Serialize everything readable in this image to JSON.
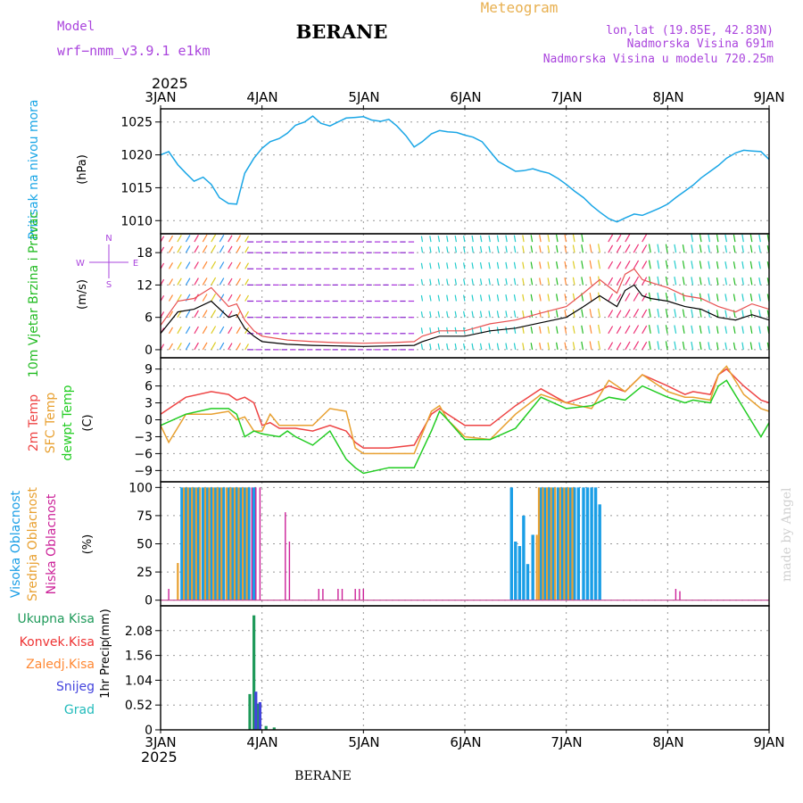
{
  "header": {
    "model_label": "Model",
    "model_name": "wrf−nmm_v3.9.1  e1km",
    "station": "BERANE",
    "meteogram": "Meteogram",
    "coords": "lon,lat (19.85E, 42.83N)",
    "elevation": "Nadmorska Visina 691m",
    "model_elevation": "Nadmorska Visina u modelu 720.25m",
    "year_top": "2025",
    "year_bottom": "2025",
    "footer_station": "BERANE",
    "credit": "made by Angel"
  },
  "colors": {
    "pressure": "#1aa6e6",
    "wind_title": "#22bb22",
    "wind_dir": "#aa44dd",
    "temp2m": "#ee4444",
    "sfc": "#e8a030",
    "dew": "#22cc22",
    "high_cloud": "#1a9ee6",
    "mid_cloud": "#e8a030",
    "low_cloud": "#cc2299",
    "total_precip": "#1f9a5a",
    "conv": "#ee3333",
    "frozen": "#ff8833",
    "snow": "#4444dd",
    "hail": "#22bbbb",
    "violet_header": "#aa44dd",
    "gold_header": "#e8b050"
  },
  "chart_data": [
    {
      "type": "line",
      "panel": "pressure",
      "title": "",
      "ylabel": "Pritisak na nivou mora",
      "unit": "(hPa)",
      "ylim": [
        1008,
        1027
      ],
      "yticks": [
        1010,
        1015,
        1020,
        1025
      ],
      "xlim": [
        0,
        6
      ],
      "xticks": [
        "3JAN",
        "4JAN",
        "5JAN",
        "6JAN",
        "7JAN",
        "8JAN",
        "9JAN"
      ],
      "grid": true,
      "series": [
        {
          "x": [
            0,
            0.08,
            0.17,
            0.25,
            0.33,
            0.42,
            0.5,
            0.58,
            0.67,
            0.75,
            0.83,
            0.92,
            1.0,
            1.08,
            1.17,
            1.25,
            1.33,
            1.42,
            1.5,
            1.58,
            1.67,
            1.75,
            1.83,
            1.92,
            2.0,
            2.08,
            2.17,
            2.25,
            2.33,
            2.42,
            2.5,
            2.58,
            2.67,
            2.75,
            2.83,
            2.92,
            3.0,
            3.08,
            3.17,
            3.25,
            3.33,
            3.42,
            3.5,
            3.58,
            3.67,
            3.75,
            3.83,
            3.92,
            4.0,
            4.08,
            4.17,
            4.25,
            4.33,
            4.42,
            4.5,
            4.58,
            4.67,
            4.75,
            4.83,
            4.92,
            5.0,
            5.08,
            5.17,
            5.25,
            5.33,
            5.42,
            5.5,
            5.58,
            5.67,
            5.75,
            5.83,
            5.92,
            6.0
          ],
          "values": [
            1020.0,
            1020.5,
            1018.5,
            1017.2,
            1016.0,
            1016.6,
            1015.5,
            1013.5,
            1012.6,
            1012.5,
            1017.2,
            1019.5,
            1021.0,
            1022.0,
            1022.5,
            1023.3,
            1024.5,
            1025.0,
            1025.9,
            1024.8,
            1024.4,
            1025.0,
            1025.6,
            1025.7,
            1025.8,
            1025.3,
            1025.1,
            1025.4,
            1024.4,
            1022.9,
            1021.2,
            1022.0,
            1023.2,
            1023.7,
            1023.5,
            1023.4,
            1023.0,
            1022.7,
            1022.0,
            1020.5,
            1019.0,
            1018.2,
            1017.5,
            1017.6,
            1017.9,
            1017.5,
            1017.2,
            1016.4,
            1015.5,
            1014.5,
            1013.5,
            1012.3,
            1011.3,
            1010.3,
            1009.8,
            1010.4,
            1011.0,
            1010.8,
            1011.3,
            1011.9,
            1012.5,
            1013.5,
            1014.5,
            1015.4,
            1016.5,
            1017.5,
            1018.4,
            1019.5,
            1020.3,
            1020.7,
            1020.6,
            1020.5,
            1019.3
          ]
        }
      ]
    },
    {
      "type": "line",
      "panel": "wind",
      "ylabel": "10m Vjetar Brzina i Pravac",
      "unit": "(m/s)",
      "ylim": [
        -1.5,
        21.5
      ],
      "yticks": [
        0,
        6,
        12,
        18
      ],
      "compass": {
        "n": "N",
        "s": "S",
        "e": "E",
        "w": "W"
      },
      "grid": true,
      "series": [
        {
          "x": [
            0,
            0.17,
            0.33,
            0.5,
            0.67,
            0.75,
            0.83,
            0.92,
            1.0,
            1.25,
            1.5,
            1.75,
            2.0,
            2.25,
            2.5,
            2.58,
            2.75,
            3.0,
            3.25,
            3.5,
            3.75,
            4.0,
            4.17,
            4.33,
            4.5,
            4.58,
            4.67,
            4.75,
            4.83,
            5.0,
            5.17,
            5.33,
            5.5,
            5.67,
            5.83,
            6.0
          ],
          "values": [
            3,
            7,
            7.5,
            9,
            6,
            6.5,
            4,
            2.5,
            1.5,
            1,
            0.8,
            0.7,
            0.6,
            0.7,
            0.8,
            1.5,
            2.5,
            2.5,
            3.5,
            4,
            5,
            6,
            8,
            10,
            8,
            11,
            12,
            10,
            9.5,
            9,
            8,
            7.5,
            6,
            5.5,
            6.5,
            5.5
          ]
        },
        {
          "x": [
            0,
            0.17,
            0.33,
            0.5,
            0.67,
            0.75,
            0.83,
            0.92,
            1.0,
            1.25,
            1.5,
            1.75,
            2.0,
            2.25,
            2.5,
            2.58,
            2.75,
            3.0,
            3.25,
            3.5,
            3.75,
            4.0,
            4.17,
            4.33,
            4.5,
            4.58,
            4.67,
            4.75,
            4.83,
            5.0,
            5.17,
            5.33,
            5.5,
            5.67,
            5.83,
            6.0
          ],
          "values": [
            4.5,
            9,
            9.5,
            11.5,
            8,
            8.5,
            5.5,
            3.5,
            2.5,
            1.8,
            1.5,
            1.3,
            1.2,
            1.3,
            1.5,
            2.5,
            3.5,
            3.5,
            4.8,
            5.5,
            6.8,
            8,
            10.5,
            13,
            10.5,
            14,
            15,
            13,
            12.5,
            11.5,
            10,
            9.5,
            8,
            7,
            8.5,
            7.5
          ]
        }
      ]
    },
    {
      "type": "line",
      "panel": "temperature",
      "ylabel": "2m Temp / SFC Temp / dewpt Temp",
      "unit": "(C)",
      "ylim": [
        -11,
        11
      ],
      "yticks": [
        -9,
        -6,
        -3,
        0,
        3,
        6,
        9
      ],
      "grid": true,
      "series": [
        {
          "name": "2m Temp",
          "x": [
            0,
            0.25,
            0.5,
            0.67,
            0.75,
            0.83,
            0.92,
            1.0,
            1.08,
            1.17,
            1.25,
            1.33,
            1.5,
            1.67,
            1.83,
            1.92,
            2.0,
            2.25,
            2.5,
            2.67,
            2.75,
            2.83,
            3.0,
            3.25,
            3.5,
            3.75,
            4.0,
            4.25,
            4.42,
            4.58,
            4.75,
            5.0,
            5.17,
            5.25,
            5.42,
            5.5,
            5.58,
            5.75,
            5.92,
            6.0
          ],
          "values": [
            1,
            4,
            5,
            4.5,
            3.5,
            4,
            3,
            -1,
            -0.5,
            -1.5,
            -1.5,
            -1.5,
            -2,
            -1,
            -2,
            -4,
            -5,
            -5,
            -4.5,
            1,
            2,
            1,
            -1,
            -1,
            2.5,
            5.5,
            3,
            4.5,
            6,
            5,
            8,
            6,
            4.5,
            5,
            4.5,
            8,
            9,
            6,
            3.5,
            3
          ]
        },
        {
          "name": "SFC Temp",
          "x": [
            0,
            0.08,
            0.25,
            0.5,
            0.67,
            0.75,
            0.83,
            0.92,
            1.0,
            1.08,
            1.17,
            1.25,
            1.5,
            1.67,
            1.83,
            1.92,
            2.0,
            2.25,
            2.5,
            2.67,
            2.75,
            2.83,
            3.0,
            3.25,
            3.5,
            3.75,
            4.0,
            4.25,
            4.42,
            4.58,
            4.75,
            5.0,
            5.17,
            5.25,
            5.42,
            5.5,
            5.58,
            5.75,
            5.92,
            6.0
          ],
          "values": [
            -1,
            -4,
            1,
            1,
            1.5,
            0,
            0.5,
            -2,
            -2,
            1,
            -1,
            -1,
            -1,
            2,
            1.5,
            -5,
            -6,
            -6,
            -6,
            1.5,
            2.5,
            0,
            -3,
            -3.5,
            1,
            4.5,
            3,
            2,
            7,
            5,
            8,
            5,
            4,
            4,
            3.5,
            8,
            9.5,
            4.5,
            2,
            1.5
          ]
        },
        {
          "name": "dewpt Temp",
          "x": [
            0,
            0.25,
            0.5,
            0.67,
            0.75,
            0.83,
            0.92,
            1.0,
            1.17,
            1.25,
            1.33,
            1.5,
            1.67,
            1.83,
            1.92,
            2.0,
            2.25,
            2.5,
            2.67,
            2.75,
            2.83,
            3.0,
            3.25,
            3.5,
            3.75,
            4.0,
            4.25,
            4.42,
            4.58,
            4.75,
            5.0,
            5.17,
            5.25,
            5.42,
            5.5,
            5.58,
            5.75,
            5.92,
            6.0
          ],
          "values": [
            -1,
            1,
            2,
            2,
            1,
            -3,
            -2,
            -2.5,
            -3,
            -2,
            -3,
            -4.5,
            -2,
            -7,
            -8.5,
            -9.5,
            -8.5,
            -8.5,
            -2,
            1.5,
            0,
            -3.5,
            -3.5,
            -1.5,
            4,
            2,
            2.5,
            4,
            3.5,
            6,
            4,
            3,
            3.5,
            3,
            6,
            7,
            2,
            -3,
            -0.5
          ]
        }
      ]
    },
    {
      "type": "bar",
      "panel": "clouds",
      "ylabel": "Visoka Oblacnost / Srednja Oblacnost / Niska Oblacnost",
      "unit": "(%)",
      "ylim": [
        -5,
        105
      ],
      "yticks": [
        0,
        25,
        50,
        75,
        100
      ],
      "grid": true,
      "series": [
        {
          "name": "Visoka Oblacnost",
          "x": [
            0.21,
            0.25,
            0.29,
            0.33,
            0.37,
            0.42,
            0.46,
            0.5,
            0.54,
            0.58,
            0.62,
            0.67,
            0.71,
            0.75,
            0.79,
            0.83,
            0.87,
            0.92,
            3.46,
            3.5,
            3.54,
            3.58,
            3.62,
            3.67,
            3.75,
            3.79,
            3.83,
            3.87,
            3.92,
            3.96,
            4.0,
            4.04,
            4.08,
            4.12,
            4.17,
            4.21,
            4.25,
            4.29,
            4.33
          ],
          "values": [
            100,
            100,
            100,
            100,
            100,
            100,
            100,
            100,
            100,
            100,
            100,
            100,
            100,
            100,
            100,
            100,
            100,
            100,
            100,
            52,
            48,
            75,
            32,
            58,
            100,
            100,
            100,
            100,
            100,
            100,
            100,
            100,
            100,
            100,
            100,
            100,
            100,
            100,
            85
          ]
        },
        {
          "name": "Srednja Oblacnost",
          "x": [
            0.17,
            0.23,
            0.27,
            0.31,
            0.35,
            0.39,
            0.44,
            0.48,
            0.52,
            0.56,
            0.6,
            0.65,
            0.69,
            0.73,
            0.77,
            0.81,
            0.85,
            3.71,
            3.73,
            3.77,
            3.81,
            3.85,
            3.89,
            3.94,
            3.98,
            4.02,
            4.06
          ],
          "values": [
            33,
            100,
            100,
            100,
            100,
            100,
            100,
            100,
            100,
            100,
            100,
            100,
            100,
            100,
            100,
            100,
            100,
            58,
            100,
            100,
            100,
            100,
            100,
            100,
            100,
            100,
            100
          ]
        },
        {
          "name": "Niska Oblacnost",
          "x": [
            0.08,
            0.9,
            0.94,
            0.98,
            1.23,
            1.27,
            1.56,
            1.6,
            1.75,
            1.79,
            1.92,
            1.96,
            2.0,
            5.08,
            5.12
          ],
          "values": [
            10,
            100,
            100,
            100,
            78,
            52,
            10,
            10,
            10,
            10,
            10,
            10,
            10,
            10,
            8
          ]
        }
      ]
    },
    {
      "type": "bar",
      "panel": "precip",
      "ylabel": "1hr Precip",
      "unit": "(mm)",
      "ylim": [
        0,
        2.6
      ],
      "yticks": [
        0,
        0.52,
        1.04,
        1.56,
        2.08
      ],
      "xticks": [
        "3JAN",
        "4JAN",
        "5JAN",
        "6JAN",
        "7JAN",
        "8JAN",
        "9JAN"
      ],
      "grid": true,
      "series": [
        {
          "name": "Ukupna Kisa",
          "x": [
            0.88,
            0.92,
            0.96,
            1.04,
            1.12
          ],
          "values": [
            0.75,
            2.4,
            0.55,
            0.08,
            0.05
          ]
        },
        {
          "name": "Konvek.Kisa",
          "x": [],
          "values": []
        },
        {
          "name": "Zaledj.Kisa",
          "x": [],
          "values": []
        },
        {
          "name": "Snijeg",
          "x": [
            0.94,
            0.98
          ],
          "values": [
            0.8,
            0.58
          ]
        },
        {
          "name": "Grad",
          "x": [],
          "values": []
        }
      ]
    }
  ]
}
